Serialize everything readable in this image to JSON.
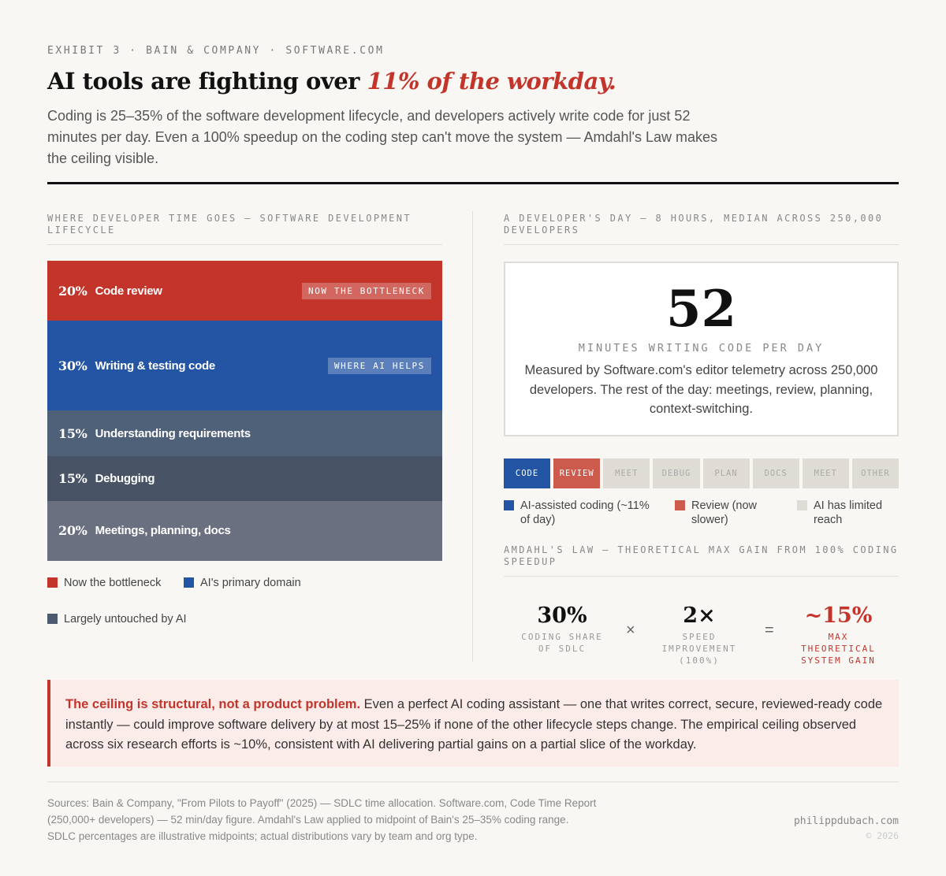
{
  "header": {
    "eyebrow": "EXHIBIT 3 · BAIN & COMPANY · SOFTWARE.COM",
    "title_plain": "AI tools are fighting over ",
    "title_accent": "11% of the workday.",
    "subtitle": "Coding is 25–35% of the software development lifecycle, and developers actively write code for just 52 minutes per day. Even a 100% speedup on the coding step can't move the system — Amdahl's Law makes the ceiling visible."
  },
  "left": {
    "heading": "WHERE DEVELOPER TIME GOES — SOFTWARE DEVELOPMENT LIFECYCLE",
    "legend": [
      {
        "label": "Now the bottleneck",
        "color": "#c3352b"
      },
      {
        "label": "AI's primary domain",
        "color": "#2455a4"
      },
      {
        "label": "Largely untouched by AI",
        "color": "#4d5b70"
      }
    ]
  },
  "chart_data": {
    "type": "bar",
    "orientation": "stacked-vertical",
    "unit": "%",
    "categories": [
      "Code review",
      "Writing & testing code",
      "Understanding requirements",
      "Debugging",
      "Meetings, planning, docs"
    ],
    "values": [
      20,
      30,
      15,
      15,
      20
    ],
    "value_labels": [
      "20%",
      "30%",
      "15%",
      "15%",
      "20%"
    ],
    "tags": [
      "NOW THE BOTTLENECK",
      "WHERE AI HELPS",
      "",
      "",
      ""
    ],
    "colors": [
      "#c3352b",
      "#2455a4",
      "#4f6079",
      "#485466",
      "#6b7080"
    ]
  },
  "right": {
    "heading": "A DEVELOPER'S DAY — 8 HOURS, MEDIAN ACROSS 250,000 DEVELOPERS",
    "big_number": "52",
    "big_label": "MINUTES WRITING CODE PER DAY",
    "card_text": "Measured by Software.com's editor telemetry across 250,000 developers. The rest of the day: meetings, review, planning, context-switching.",
    "day_blocks": [
      {
        "label": "CODE",
        "color": "#2455a4",
        "text": "#ffffff"
      },
      {
        "label": "REVIEW",
        "color": "#cc5a4d",
        "text": "#ffffff"
      },
      {
        "label": "MEET",
        "color": "#dedcd5",
        "text": "#aaaaaa"
      },
      {
        "label": "DEBUG",
        "color": "#dedcd5",
        "text": "#aaaaaa"
      },
      {
        "label": "PLAN",
        "color": "#dedcd5",
        "text": "#aaaaaa"
      },
      {
        "label": "DOCS",
        "color": "#dedcd5",
        "text": "#aaaaaa"
      },
      {
        "label": "MEET",
        "color": "#dedcd5",
        "text": "#aaaaaa"
      },
      {
        "label": "OTHER",
        "color": "#dedcd5",
        "text": "#aaaaaa"
      }
    ],
    "legend": [
      {
        "label": "AI-assisted coding (~11% of day)",
        "color": "#2455a4"
      },
      {
        "label": "Review (now slower)",
        "color": "#cc5a4d"
      },
      {
        "label": "AI has limited reach",
        "color": "#dedcd5"
      }
    ],
    "amdahl_heading": "AMDAHL'S LAW — THEORETICAL MAX GAIN FROM 100% CODING SPEEDUP",
    "formula": {
      "a_value": "30%",
      "a_label": "CODING SHARE OF SDLC",
      "op1": "×",
      "b_value": "2×",
      "b_label": "SPEED IMPROVEMENT (100%)",
      "op2": "=",
      "c_value": "~15%",
      "c_label": "MAX THEORETICAL SYSTEM GAIN"
    }
  },
  "callout": {
    "bold": "The ceiling is structural, not a product problem.",
    "text": " Even a perfect AI coding assistant — one that writes correct, secure, reviewed-ready code instantly — could improve software delivery by at most 15–25% if none of the other lifecycle steps change. The empirical ceiling observed across six research efforts is ~10%, consistent with AI delivering partial gains on a partial slice of the workday."
  },
  "footer": {
    "sources": "Sources: Bain & Company, \"From Pilots to Payoff\" (2025) — SDLC time allocation. Software.com, Code Time Report (250,000+ developers) — 52 min/day figure. Amdahl's Law applied to midpoint of Bain's 25–35% coding range. SDLC percentages are illustrative midpoints; actual distributions vary by team and org type.",
    "site": "philippdubach.com",
    "copyright": "© 2026"
  }
}
